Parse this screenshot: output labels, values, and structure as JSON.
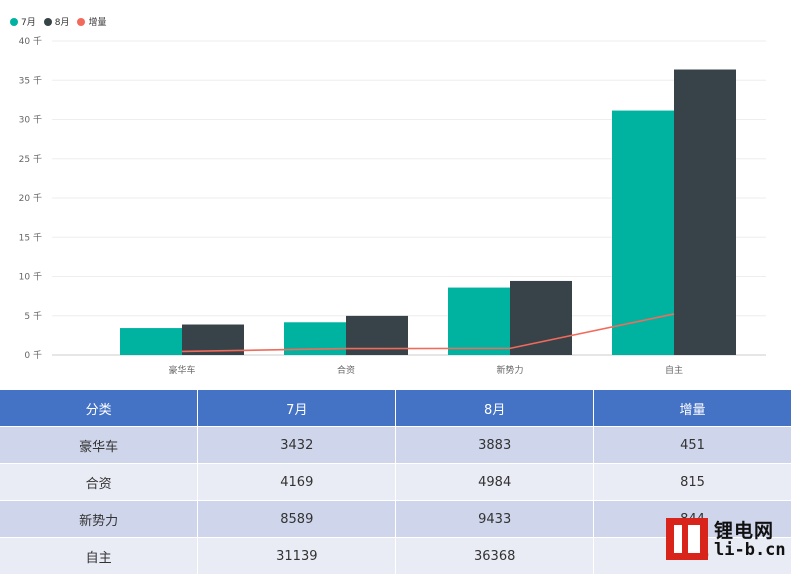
{
  "chart_data": {
    "type": "bar",
    "categories": [
      "豪华车",
      "合资",
      "新势力",
      "自主"
    ],
    "series": [
      {
        "name": "7月",
        "kind": "bar",
        "color": "#00b3a1",
        "values": [
          3432,
          4169,
          8589,
          31139
        ]
      },
      {
        "name": "8月",
        "kind": "bar",
        "color": "#374348",
        "values": [
          3883,
          4984,
          9433,
          36368
        ]
      },
      {
        "name": "增量",
        "kind": "line",
        "color": "#f26a5b",
        "values": [
          451,
          815,
          844,
          5229
        ]
      }
    ],
    "ylim": [
      0,
      40000
    ],
    "yticks": [
      {
        "value": 0,
        "label": "0 千"
      },
      {
        "value": 5000,
        "label": "5 千"
      },
      {
        "value": 10000,
        "label": "10 千"
      },
      {
        "value": 15000,
        "label": "15 千"
      },
      {
        "value": 20000,
        "label": "20 千"
      },
      {
        "value": 25000,
        "label": "25 千"
      },
      {
        "value": 30000,
        "label": "30 千"
      },
      {
        "value": 35000,
        "label": "35 千"
      },
      {
        "value": 40000,
        "label": "40 千"
      }
    ],
    "grid": true,
    "legend_position": "top-left"
  },
  "table": {
    "headers": [
      "分类",
      "7月",
      "8月",
      "增量"
    ],
    "rows": [
      [
        "豪华车",
        "3432",
        "3883",
        "451"
      ],
      [
        "合资",
        "4169",
        "4984",
        "815"
      ],
      [
        "新势力",
        "8589",
        "9433",
        "844"
      ],
      [
        "自主",
        "31139",
        "36368",
        "5229"
      ]
    ]
  },
  "watermark": {
    "cn": "锂电网",
    "en": "li-b.cn"
  }
}
